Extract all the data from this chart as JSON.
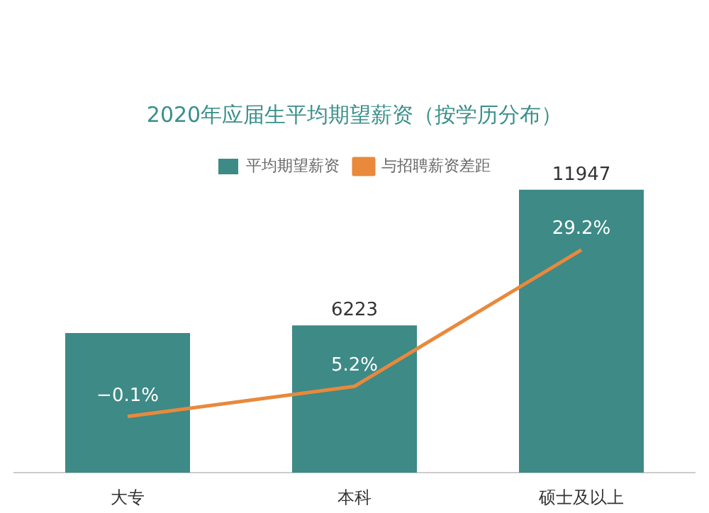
{
  "chart_data": {
    "type": "bar",
    "title": "2020年应届生平均期望薪资（按学历分布）",
    "categories": [
      "大专",
      "本科",
      "硕士及以上"
    ],
    "series": [
      {
        "name": "平均期望薪资",
        "color": "#3d8a86",
        "values": [
          5900,
          6223,
          11947
        ],
        "value_labels": [
          null,
          "6223",
          "11947"
        ]
      },
      {
        "name": "与招聘薪资差距",
        "type": "line",
        "axis": "y2",
        "color": "#e8893c",
        "values": [
          -0.1,
          5.2,
          29.2
        ],
        "value_labels": [
          "−0.1%",
          "5.2%",
          "29.2%"
        ]
      }
    ],
    "legend": "top",
    "grid": false,
    "tick_labels": "x",
    "marker": "none"
  }
}
